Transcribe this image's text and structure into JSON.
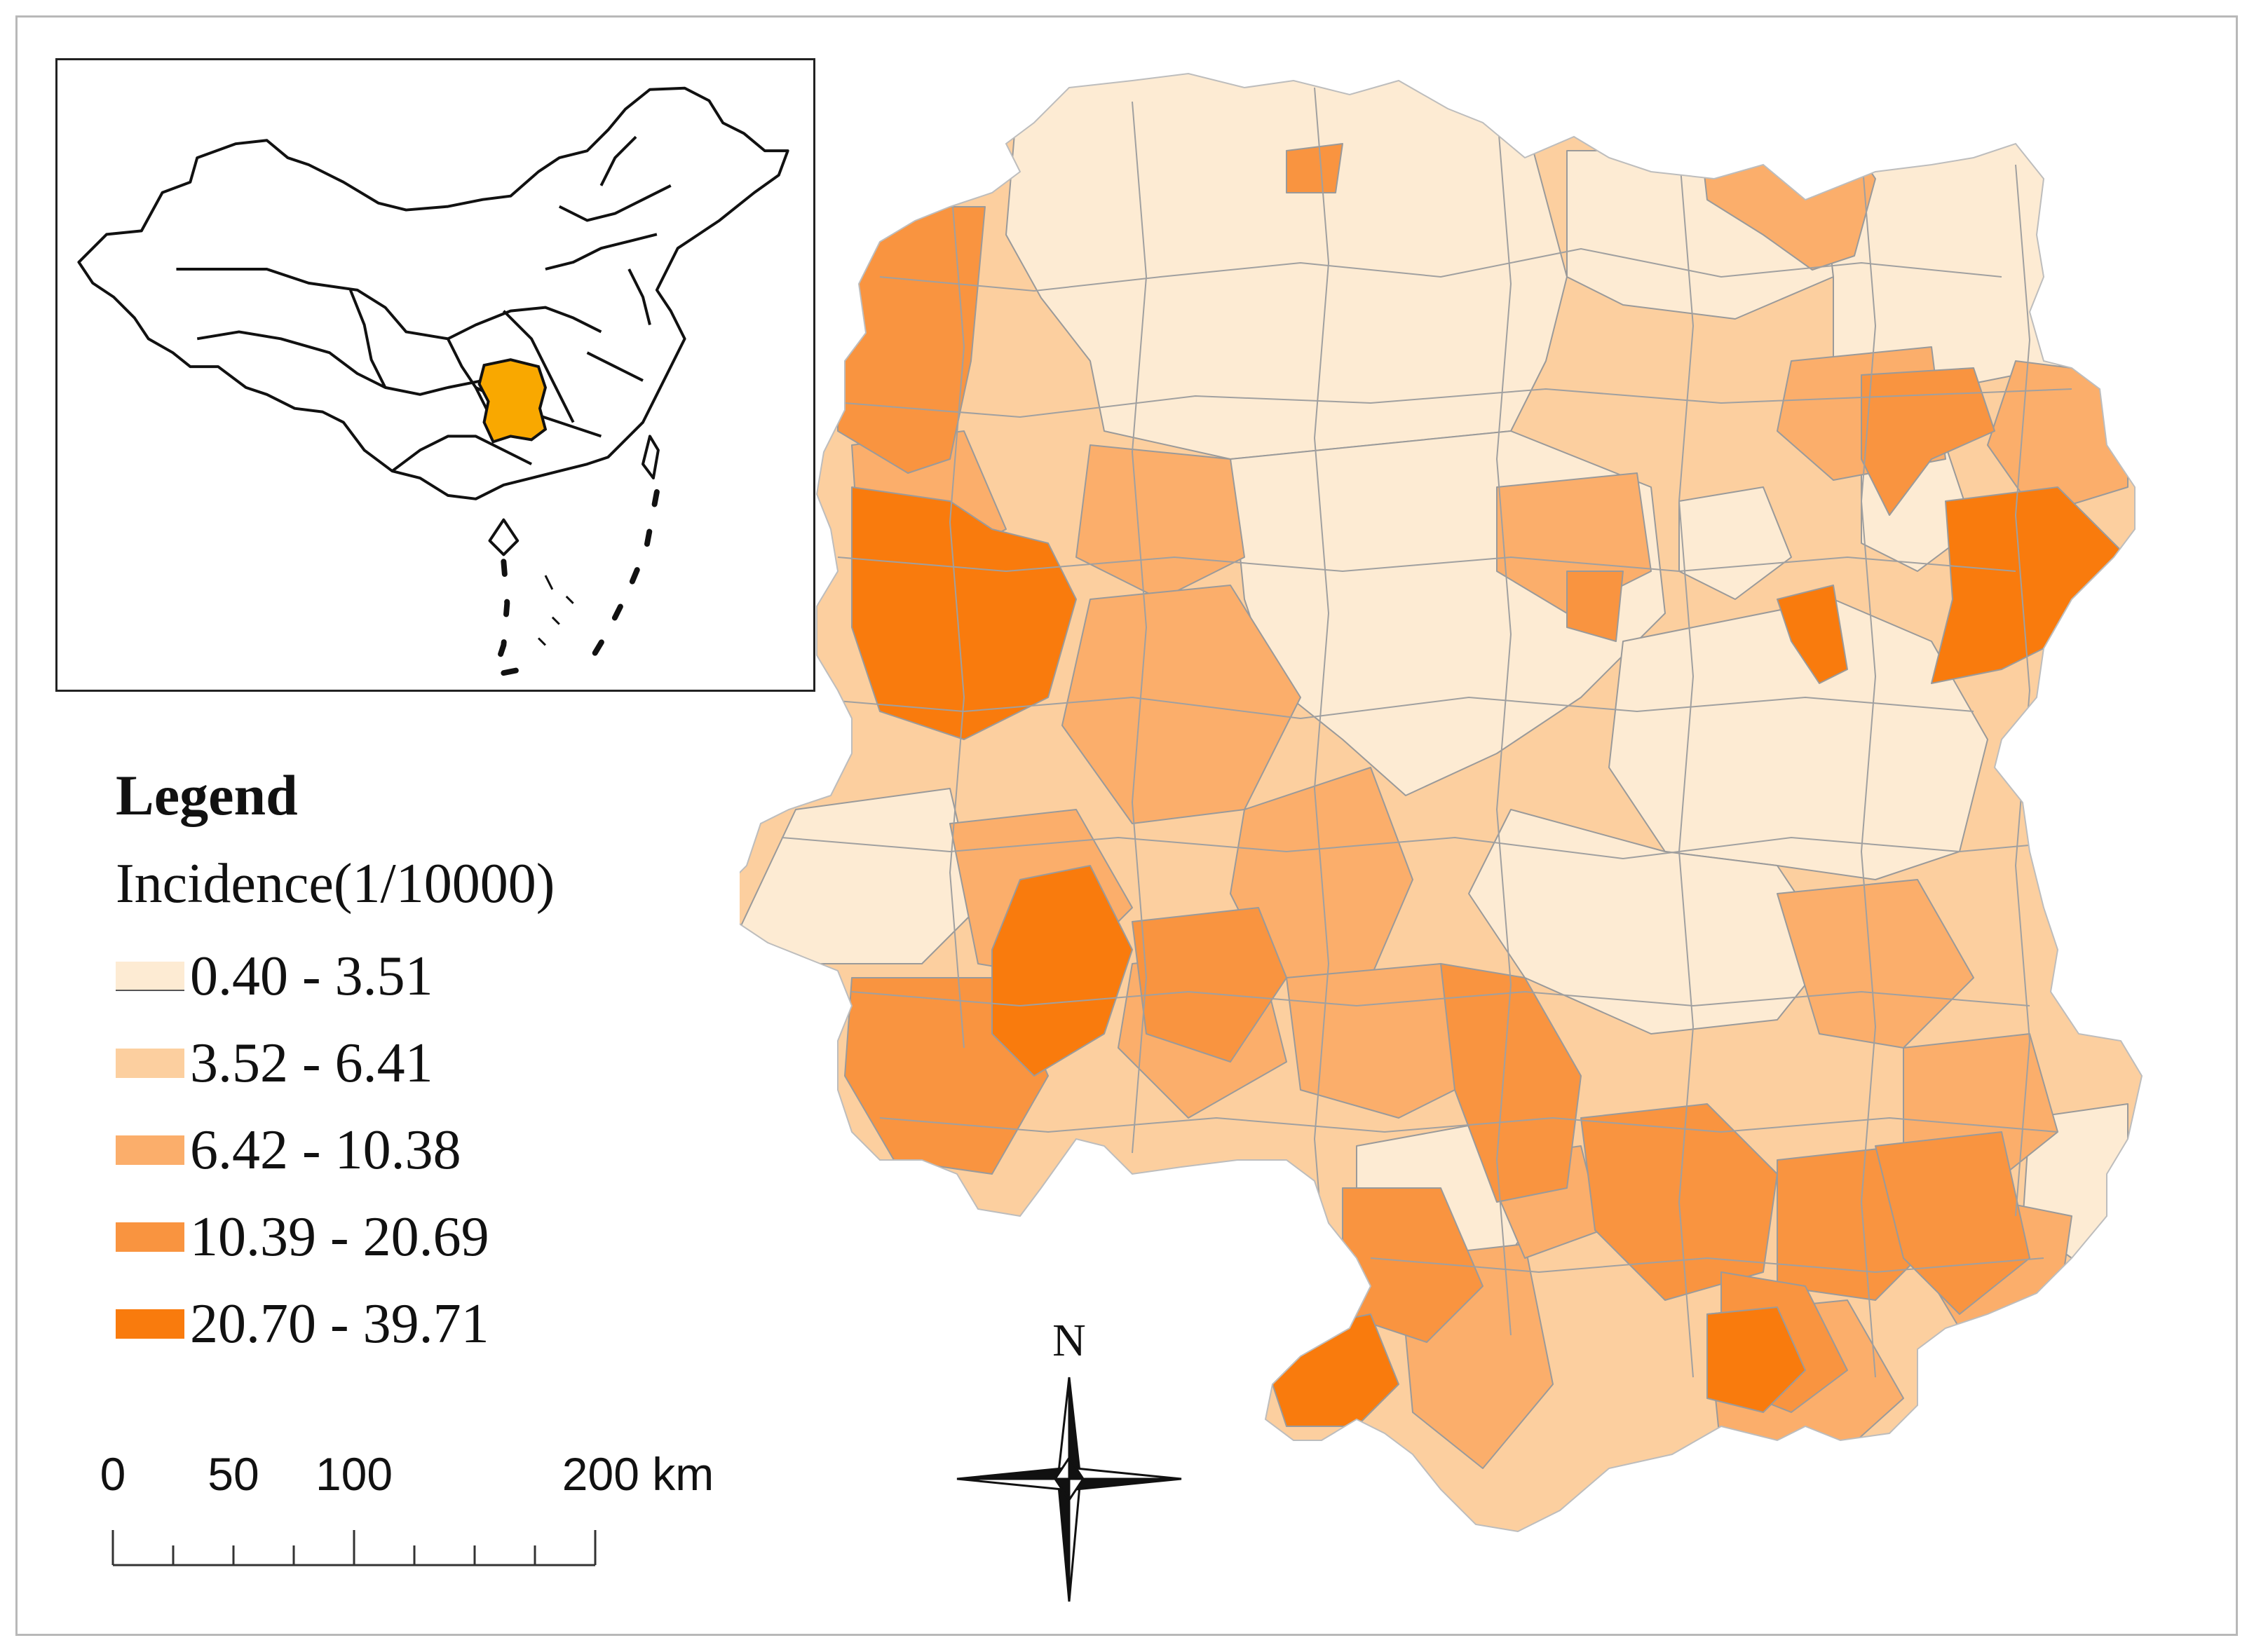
{
  "legend": {
    "title": "Legend",
    "subtitle": "Incidence(1/10000)",
    "classes": [
      {
        "label": "0.40 - 3.51",
        "range": [
          0.4,
          3.51
        ],
        "color": "#fdebd3"
      },
      {
        "label": "3.52 - 6.41",
        "range": [
          3.52,
          6.41
        ],
        "color": "#fccf9f"
      },
      {
        "label": "6.42 - 10.38",
        "range": [
          6.42,
          10.38
        ],
        "color": "#fbae6b"
      },
      {
        "label": "10.39 - 20.69",
        "range": [
          10.39,
          20.69
        ],
        "color": "#f99440"
      },
      {
        "label": "20.70 - 39.71",
        "range": [
          20.7,
          39.71
        ],
        "color": "#f97b0d"
      }
    ]
  },
  "scalebar": {
    "labels": [
      "0",
      "50",
      "100",
      "200 km"
    ],
    "values_km": [
      0,
      50,
      100,
      200
    ]
  },
  "north_arrow": {
    "label": "N"
  },
  "inset": {
    "highlight_color": "#f9a800",
    "highlight_region": "Hunan"
  },
  "colors": {
    "border": "#b8b8b8",
    "outline": "#222222"
  }
}
